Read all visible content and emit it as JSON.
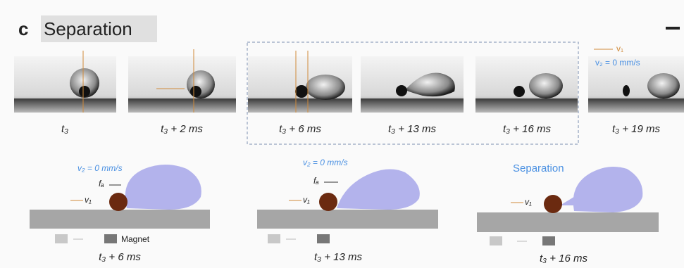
{
  "panel": {
    "letter": "c",
    "title": "Separation"
  },
  "frames": [
    {
      "label": "t₃"
    },
    {
      "label": "t₃ + 2 ms"
    },
    {
      "label": "t₃ + 6 ms"
    },
    {
      "label": "t₃ + 13 ms"
    },
    {
      "label": "t₃ + 16 ms"
    },
    {
      "label": "t₃ + 19 ms"
    }
  ],
  "legend": {
    "v1": "v₁",
    "v2": "v₂ = 0 mm/s"
  },
  "schematics": [
    {
      "velocity": "v₂ = 0 mm/s",
      "force": "fₐ",
      "particle": "v₁",
      "magnet": "Magnet",
      "time": "t₃ + 6 ms"
    },
    {
      "velocity": "v₂ = 0 mm/s",
      "force": "fₐ",
      "particle": "v₁",
      "time": "t₃ + 13 ms"
    },
    {
      "status": "Separation",
      "particle": "v₁",
      "time": "t₃ + 16 ms"
    }
  ]
}
